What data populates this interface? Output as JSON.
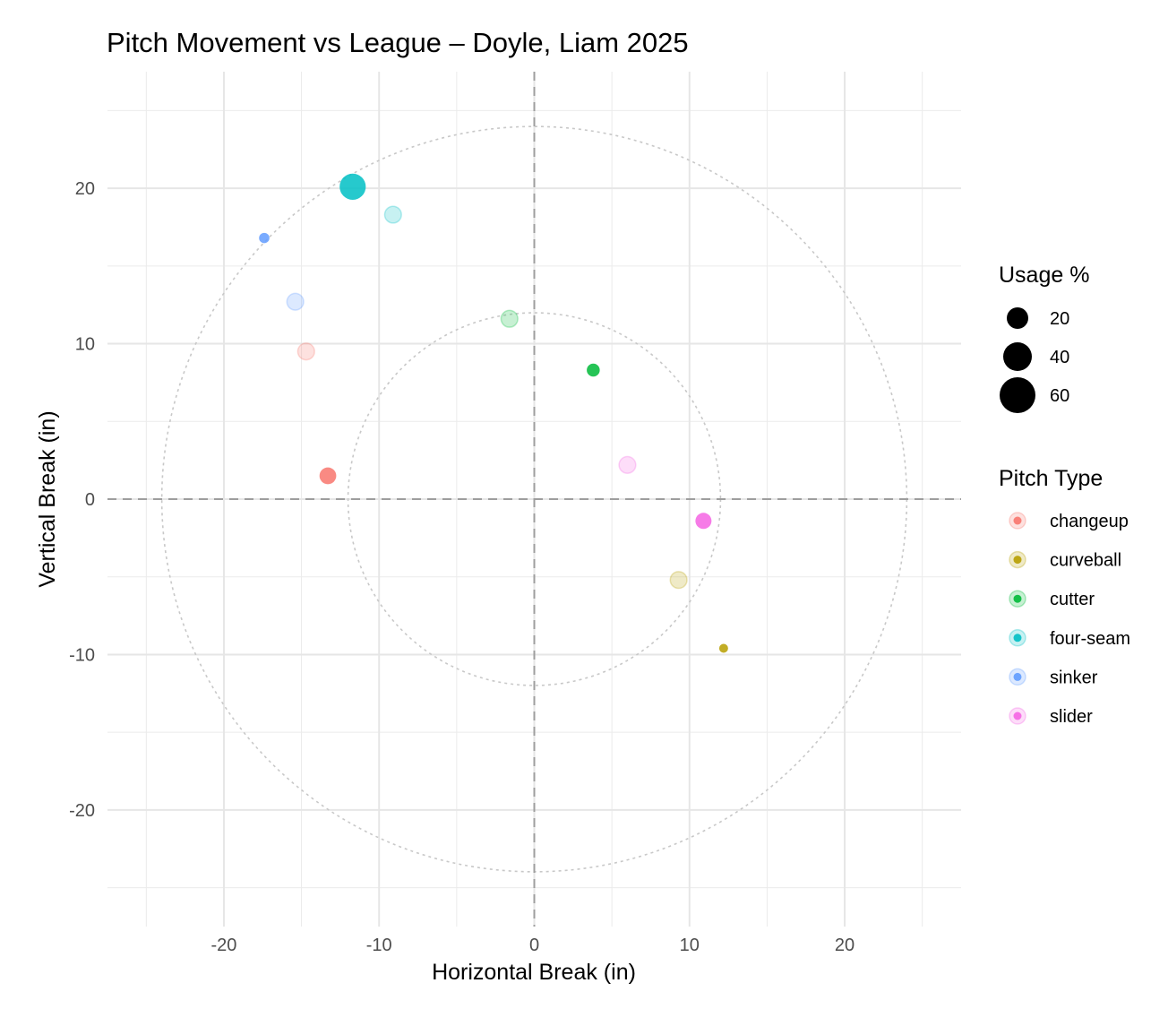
{
  "chart_data": {
    "type": "scatter",
    "title": "Pitch Movement vs League – Doyle, Liam 2025",
    "xlabel": "Horizontal Break (in)",
    "ylabel": "Vertical Break (in)",
    "xlim": [
      -27.5,
      27.5
    ],
    "ylim": [
      -27.5,
      27.5
    ],
    "x_ticks": [
      -20,
      -10,
      0,
      10,
      20
    ],
    "y_ticks": [
      -20,
      -10,
      0,
      10,
      20
    ],
    "grid": true,
    "reference_lines": {
      "x": 0,
      "y": 0,
      "style": "dashed"
    },
    "reference_circles": {
      "radii": [
        12,
        24
      ],
      "style": "dotted"
    },
    "legend_position": "right",
    "size_legend": {
      "title": "Usage %",
      "entries": [
        {
          "label": "20",
          "value": 20
        },
        {
          "label": "40",
          "value": 40
        },
        {
          "label": "60",
          "value": 60
        }
      ]
    },
    "color_legend": {
      "title": "Pitch Type",
      "entries": [
        {
          "label": "changeup",
          "color": "#F8766D"
        },
        {
          "label": "curveball",
          "color": "#B79F00"
        },
        {
          "label": "cutter",
          "color": "#00BA38"
        },
        {
          "label": "four-seam",
          "color": "#00BFC4"
        },
        {
          "label": "sinker",
          "color": "#619CFF"
        },
        {
          "label": "slider",
          "color": "#F564E3"
        }
      ]
    },
    "league_points": [
      {
        "pitch_type": "changeup",
        "x": -14.7,
        "y": 9.5,
        "usage": 20
      },
      {
        "pitch_type": "curveball",
        "x": 9.3,
        "y": -5.2,
        "usage": 20
      },
      {
        "pitch_type": "cutter",
        "x": -1.6,
        "y": 11.6,
        "usage": 20
      },
      {
        "pitch_type": "four-seam",
        "x": -9.1,
        "y": 18.3,
        "usage": 20
      },
      {
        "pitch_type": "sinker",
        "x": -15.4,
        "y": 12.7,
        "usage": 20
      },
      {
        "pitch_type": "slider",
        "x": 6.0,
        "y": 2.2,
        "usage": 20
      }
    ],
    "pitcher_points": [
      {
        "pitch_type": "changeup",
        "x": -13.3,
        "y": 1.5,
        "usage": 20
      },
      {
        "pitch_type": "curveball",
        "x": 12.2,
        "y": -9.6,
        "usage": 3
      },
      {
        "pitch_type": "cutter",
        "x": 3.8,
        "y": 8.3,
        "usage": 10
      },
      {
        "pitch_type": "four-seam",
        "x": -11.7,
        "y": 20.1,
        "usage": 60
      },
      {
        "pitch_type": "sinker",
        "x": -17.4,
        "y": 16.8,
        "usage": 5
      },
      {
        "pitch_type": "slider",
        "x": 10.9,
        "y": -1.4,
        "usage": 18
      }
    ]
  }
}
